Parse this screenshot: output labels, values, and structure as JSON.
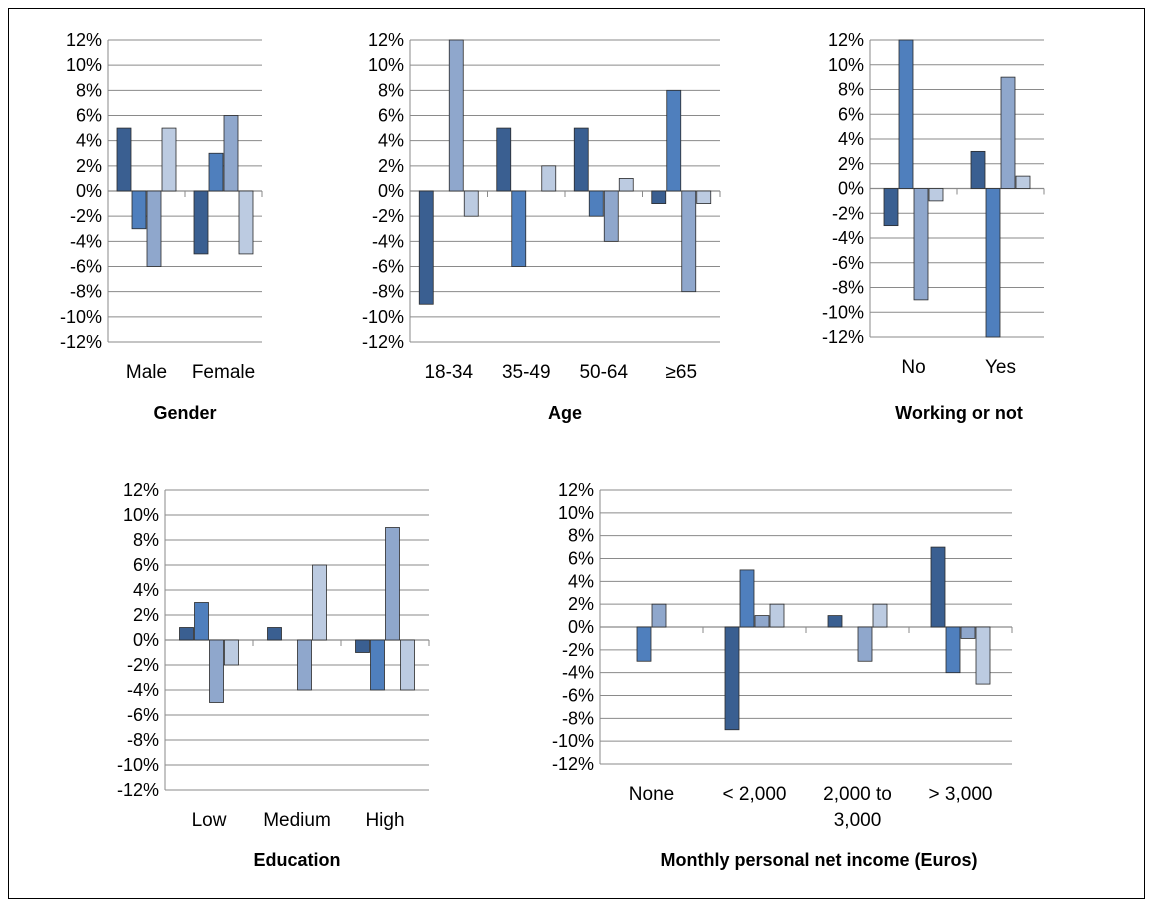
{
  "colors": [
    "#3a5f91",
    "#4f7fbd",
    "#8fa7cc",
    "#bccbe1"
  ],
  "chart_data": [
    {
      "type": "bar",
      "title": "Gender",
      "categories": [
        "Male",
        "Female"
      ],
      "y_ticks": [
        "12%",
        "10%",
        "8%",
        "6%",
        "4%",
        "2%",
        "0%",
        "-2%",
        "-4%",
        "-6%",
        "-8%",
        "-10%",
        "-12%"
      ],
      "ylim": [
        -12,
        12
      ],
      "series": [
        {
          "values": [
            5,
            -5
          ]
        },
        {
          "values": [
            -3,
            3
          ]
        },
        {
          "values": [
            -6,
            6
          ]
        },
        {
          "values": [
            5,
            -5
          ]
        }
      ]
    },
    {
      "type": "bar",
      "title": "Age",
      "categories": [
        "18-34",
        "35-49",
        "50-64",
        "≥65"
      ],
      "y_ticks": [
        "12%",
        "10%",
        "8%",
        "6%",
        "4%",
        "2%",
        "0%",
        "-2%",
        "-4%",
        "-6%",
        "-8%",
        "-10%",
        "-12%"
      ],
      "ylim": [
        -12,
        12
      ],
      "series": [
        {
          "values": [
            -9,
            5,
            5,
            -1
          ]
        },
        {
          "values": [
            0,
            -6,
            -2,
            8
          ]
        },
        {
          "values": [
            12,
            0,
            -4,
            -8
          ]
        },
        {
          "values": [
            -2,
            2,
            1,
            -1
          ]
        }
      ]
    },
    {
      "type": "bar",
      "title": "Working or not",
      "categories": [
        "No",
        "Yes"
      ],
      "y_ticks": [
        "12%",
        "10%",
        "8%",
        "6%",
        "4%",
        "2%",
        "0%",
        "-2%",
        "-4%",
        "-6%",
        "-8%",
        "-10%",
        "-12%"
      ],
      "ylim": [
        -12,
        12
      ],
      "series": [
        {
          "values": [
            -3,
            3
          ]
        },
        {
          "values": [
            12,
            -12
          ]
        },
        {
          "values": [
            -9,
            9
          ]
        },
        {
          "values": [
            -1,
            1
          ]
        }
      ]
    },
    {
      "type": "bar",
      "title": "Education",
      "categories": [
        "Low",
        "Medium",
        "High"
      ],
      "y_ticks": [
        "12%",
        "10%",
        "8%",
        "6%",
        "4%",
        "2%",
        "0%",
        "-2%",
        "-4%",
        "-6%",
        "-8%",
        "-10%",
        "-12%"
      ],
      "ylim": [
        -12,
        12
      ],
      "series": [
        {
          "values": [
            1,
            1,
            -1
          ]
        },
        {
          "values": [
            3,
            0,
            -4
          ]
        },
        {
          "values": [
            -5,
            -4,
            9
          ]
        },
        {
          "values": [
            -2,
            6,
            -4
          ]
        }
      ]
    },
    {
      "type": "bar",
      "title": "Monthly personal net income (Euros)",
      "categories": [
        "None",
        "< 2,000",
        "2,000 to 3,000",
        "> 3,000"
      ],
      "category_lines": [
        [
          "None"
        ],
        [
          "< 2,000"
        ],
        [
          "2,000 to",
          "3,000"
        ],
        [
          "> 3,000"
        ]
      ],
      "y_ticks": [
        "12%",
        "10%",
        "8%",
        "6%",
        "4%",
        "2%",
        "0%",
        "-2%",
        "-4%",
        "-6%",
        "-8%",
        "-10%",
        "-12%"
      ],
      "ylim": [
        -12,
        12
      ],
      "series": [
        {
          "values": [
            0,
            -9,
            1,
            7
          ]
        },
        {
          "values": [
            -3,
            5,
            0,
            -4
          ]
        },
        {
          "values": [
            2,
            1,
            -3,
            -1
          ]
        },
        {
          "values": [
            0,
            2,
            2,
            -5
          ]
        }
      ]
    }
  ]
}
